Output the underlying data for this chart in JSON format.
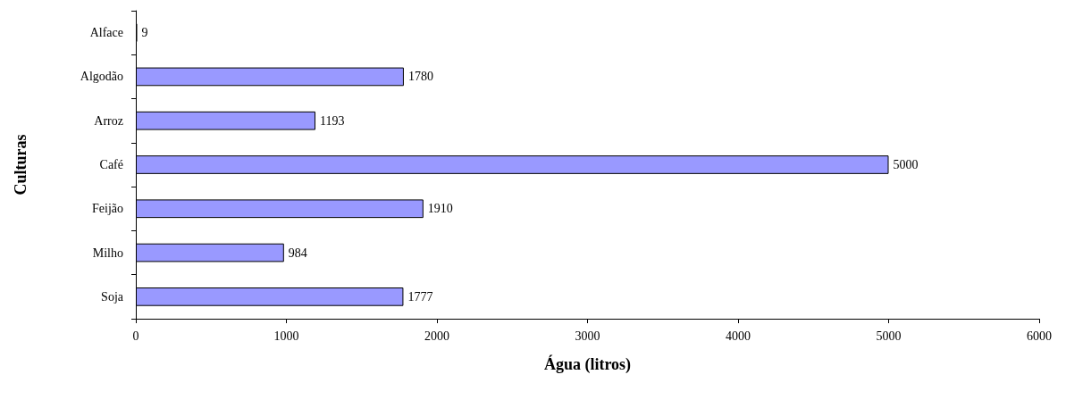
{
  "chart_data": {
    "type": "bar",
    "orientation": "horizontal",
    "xlabel": "Água (litros)",
    "ylabel": "Culturas",
    "categories": [
      "Alface",
      "Algodão",
      "Arroz",
      "Café",
      "Feijão",
      "Milho",
      "Soja"
    ],
    "values": [
      9,
      1780,
      1193,
      5000,
      1910,
      984,
      1777
    ],
    "color": "#9999ff",
    "xlim": [
      0,
      6000
    ],
    "xticks": [
      0,
      1000,
      2000,
      3000,
      4000,
      5000,
      6000
    ],
    "data_labels": true,
    "grid": false
  }
}
